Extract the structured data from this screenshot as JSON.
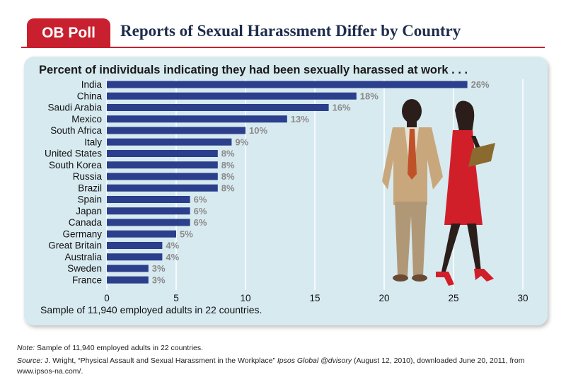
{
  "header": {
    "badge": "OB Poll",
    "title": "Reports of Sexual Harassment Differ by Country"
  },
  "chart_data": {
    "type": "bar",
    "orientation": "horizontal",
    "title": "Percent of individuals indicating they had been sexually harassed at work . . .",
    "categories": [
      "India",
      "China",
      "Saudi Arabia",
      "Mexico",
      "South Africa",
      "Italy",
      "United States",
      "South Korea",
      "Russia",
      "Brazil",
      "Spain",
      "Japan",
      "Canada",
      "Germany",
      "Great Britain",
      "Australia",
      "Sweden",
      "France"
    ],
    "values": [
      26,
      18,
      16,
      13,
      10,
      9,
      8,
      8,
      8,
      8,
      6,
      6,
      6,
      5,
      4,
      4,
      3,
      3
    ],
    "value_labels": [
      "26%",
      "18%",
      "16%",
      "13%",
      "10%",
      "9%",
      "8%",
      "8%",
      "8%",
      "8%",
      "6%",
      "6%",
      "6%",
      "5%",
      "4%",
      "4%",
      "3%",
      "3%"
    ],
    "xlim": [
      0,
      30
    ],
    "xticks": [
      0,
      5,
      10,
      15,
      20,
      25,
      30
    ],
    "grid": true,
    "bar_color": "#2b3f8c",
    "gridline_color": "#ffffff",
    "caption": "Sample of 11,940 employed adults in 22 countries."
  },
  "illustration": {
    "man": {
      "jacket": "#c9a77c",
      "trousers": "#b09877",
      "tie": "#c0522a",
      "skin": "#2b1e1a",
      "shoes": "#6a4a33"
    },
    "woman": {
      "dress": "#d11f2a",
      "skin": "#2b1e1a",
      "shoes": "#d11f2a",
      "clipboard": "#8a6a2e"
    }
  },
  "footer": {
    "note_label": "Note:",
    "note_text": " Sample of 11,940 employed adults in 22 countries.",
    "source_label": "Source:",
    "source_author": " J. Wright, “Physical Assault and Sexual Harassment in the Workplace” ",
    "source_pub": "Ipsos Global @dvisory",
    "source_rest": " (August 12, 2010), downloaded June 20, 2011, from www.ipsos-na.com/."
  }
}
